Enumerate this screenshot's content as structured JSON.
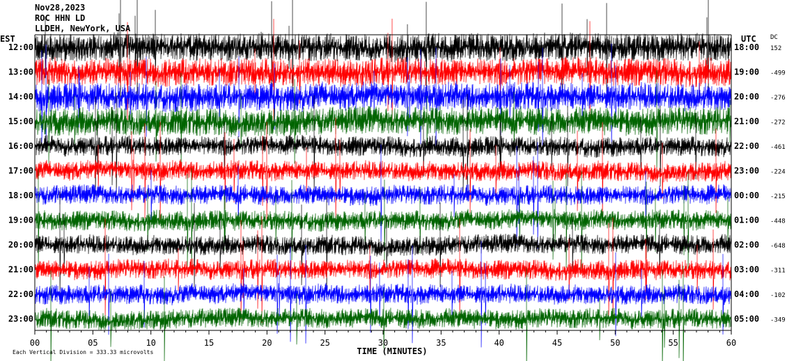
{
  "chart_data": {
    "type": "line",
    "title_lines": [
      "Nov28,2023",
      "ROC HHN LD",
      "LLDEH, NewYork, USA"
    ],
    "left_axis_label": "EST",
    "right_axis_label": "UTC",
    "dc_label": "DC",
    "left_hours": [
      "12:00",
      "13:00",
      "14:00",
      "15:00",
      "16:00",
      "17:00",
      "18:00",
      "19:00",
      "20:00",
      "21:00",
      "22:00",
      "23:00"
    ],
    "right_hours": [
      "18:00",
      "19:00",
      "20:00",
      "21:00",
      "22:00",
      "23:00",
      "00:00",
      "01:00",
      "02:00",
      "03:00",
      "04:00",
      "05:00"
    ],
    "dc_values": [
      "152",
      "-499",
      "-276",
      "-272",
      "-461",
      "-224",
      "-215",
      "-448",
      "-648",
      "-311",
      "-102",
      "-349"
    ],
    "trace_colors": [
      "#000000",
      "#ff0000",
      "#0000ff",
      "#006400"
    ],
    "x_ticks": [
      "00",
      "05",
      "10",
      "15",
      "20",
      "25",
      "30",
      "35",
      "40",
      "45",
      "50",
      "55",
      "60"
    ],
    "xlim": [
      0,
      60
    ],
    "xlabel": "TIME (MINUTES)",
    "scale_note": "Each Vertical Division =  333.33 microvolts",
    "grid": false
  }
}
